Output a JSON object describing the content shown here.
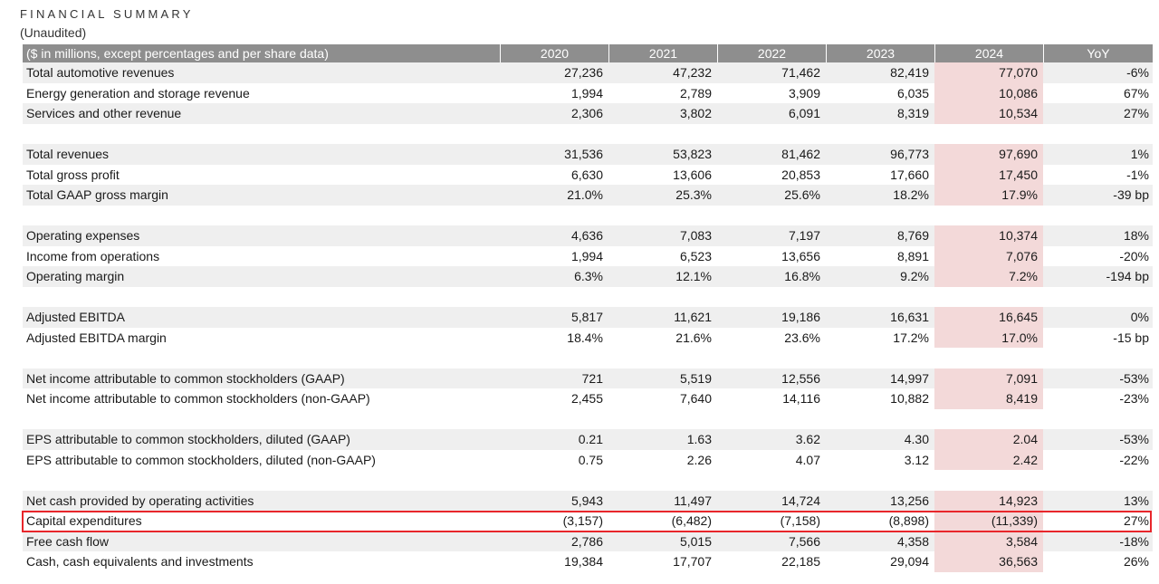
{
  "title": "FINANCIAL SUMMARY",
  "subtitle": "(Unaudited)",
  "header": [
    "($ in millions, except percentages and per share data)",
    "2020",
    "2021",
    "2022",
    "2023",
    "2024",
    "YoY"
  ],
  "rows": [
    {
      "label": "Total automotive revenues",
      "v": [
        "27,236",
        "47,232",
        "71,462",
        "82,419",
        "77,070"
      ],
      "yoy": "-6%"
    },
    {
      "label": "Energy generation and storage revenue",
      "v": [
        "1,994",
        "2,789",
        "3,909",
        "6,035",
        "10,086"
      ],
      "yoy": "67%"
    },
    {
      "label": "Services and other revenue",
      "v": [
        "2,306",
        "3,802",
        "6,091",
        "8,319",
        "10,534"
      ],
      "yoy": "27%"
    },
    {
      "label": "Total revenues",
      "v": [
        "31,536",
        "53,823",
        "81,462",
        "96,773",
        "97,690"
      ],
      "yoy": "1%"
    },
    {
      "label": "Total gross profit",
      "v": [
        "6,630",
        "13,606",
        "20,853",
        "17,660",
        "17,450"
      ],
      "yoy": "-1%"
    },
    {
      "label": "Total GAAP gross margin",
      "v": [
        "21.0%",
        "25.3%",
        "25.6%",
        "18.2%",
        "17.9%"
      ],
      "yoy": "-39 bp"
    },
    {
      "label": "Operating expenses",
      "v": [
        "4,636",
        "7,083",
        "7,197",
        "8,769",
        "10,374"
      ],
      "yoy": "18%"
    },
    {
      "label": "Income from operations",
      "v": [
        "1,994",
        "6,523",
        "13,656",
        "8,891",
        "7,076"
      ],
      "yoy": "-20%"
    },
    {
      "label": "Operating margin",
      "v": [
        "6.3%",
        "12.1%",
        "16.8%",
        "9.2%",
        "7.2%"
      ],
      "yoy": "-194 bp"
    },
    {
      "label": "Adjusted EBITDA",
      "v": [
        "5,817",
        "11,621",
        "19,186",
        "16,631",
        "16,645"
      ],
      "yoy": "0%"
    },
    {
      "label": "Adjusted EBITDA margin",
      "v": [
        "18.4%",
        "21.6%",
        "23.6%",
        "17.2%",
        "17.0%"
      ],
      "yoy": "-15 bp"
    },
    {
      "label": "Net income attributable to common stockholders (GAAP)",
      "v": [
        "721",
        "5,519",
        "12,556",
        "14,997",
        "7,091"
      ],
      "yoy": "-53%"
    },
    {
      "label": "Net income attributable to common stockholders (non-GAAP)",
      "v": [
        "2,455",
        "7,640",
        "14,116",
        "10,882",
        "8,419"
      ],
      "yoy": "-23%"
    },
    {
      "label": "EPS attributable to common stockholders, diluted (GAAP)",
      "v": [
        "0.21",
        "1.63",
        "3.62",
        "4.30",
        "2.04"
      ],
      "yoy": "-53%"
    },
    {
      "label": "EPS attributable to common stockholders, diluted (non-GAAP)",
      "v": [
        "0.75",
        "2.26",
        "4.07",
        "3.12",
        "2.42"
      ],
      "yoy": "-22%"
    },
    {
      "label": "Net cash provided by operating activities",
      "v": [
        "5,943",
        "11,497",
        "14,724",
        "13,256",
        "14,923"
      ],
      "yoy": "13%"
    },
    {
      "label": "Capital expenditures",
      "v": [
        "(3,157)",
        "(6,482)",
        "(7,158)",
        "(8,898)",
        "(11,339)"
      ],
      "yoy": "27%"
    },
    {
      "label": "Free cash flow",
      "v": [
        "2,786",
        "5,015",
        "7,566",
        "4,358",
        "3,584"
      ],
      "yoy": "-18%"
    },
    {
      "label": "Cash, cash equivalents and investments",
      "v": [
        "19,384",
        "17,707",
        "22,185",
        "29,094",
        "36,563"
      ],
      "yoy": "26%"
    }
  ],
  "colors": {
    "header_bg": "#8e8e8e",
    "row_shade": "#efefef",
    "highlight_2024": "#f3d9d9",
    "callout_border": "#e8262b"
  }
}
